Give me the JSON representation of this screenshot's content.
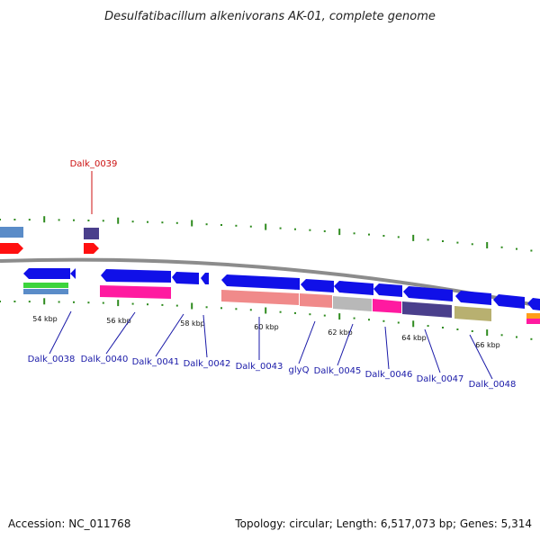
{
  "title": "Desulfatibacillum alkenivorans AK-01, complete genome",
  "footer": {
    "accession": "Accession: NC_011768",
    "info": "Topology: circular; Length: 6,517,073 bp; Genes: 5,314"
  },
  "colors": {
    "backbone": "#8c8c8c",
    "tick": "#2e8b1e",
    "gene_arrow": "#1010e8",
    "label": "#1a1aa8",
    "highlight": "#cc1111"
  },
  "scale_labels": [
    "54 kbp",
    "56 kbp",
    "58 kbp",
    "60 kbp",
    "62 kbp",
    "64 kbp",
    "66 kbp"
  ],
  "gene_labels": [
    {
      "text": "Dalk_0039",
      "highlight": true
    },
    {
      "text": "Dalk_0038",
      "highlight": false
    },
    {
      "text": "Dalk_0040",
      "highlight": false
    },
    {
      "text": "Dalk_0041",
      "highlight": false
    },
    {
      "text": "Dalk_0042",
      "highlight": false
    },
    {
      "text": "Dalk_0043",
      "highlight": false
    },
    {
      "text": "glyQ",
      "highlight": false
    },
    {
      "text": "Dalk_0045",
      "highlight": false
    },
    {
      "text": "Dalk_0046",
      "highlight": false
    },
    {
      "text": "Dalk_0047",
      "highlight": false
    },
    {
      "text": "Dalk_0048",
      "highlight": false
    }
  ],
  "feature_colors": {
    "blue": "#1010e8",
    "magenta": "#ff1aa0",
    "salmon": "#f08a8a",
    "silver": "#b8b8b8",
    "purple": "#4a3f8c",
    "khaki": "#b8b070",
    "green": "#3cd43c",
    "steel": "#5a8cc8",
    "red": "#ff1010",
    "orange": "#ff9c1a"
  }
}
